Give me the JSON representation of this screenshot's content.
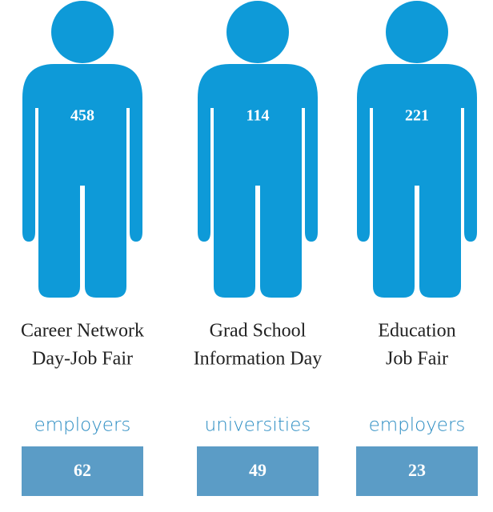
{
  "items": [
    {
      "value": "458",
      "label": [
        "Career Network",
        "Day-Job Fair"
      ],
      "unit": "employers",
      "count": "62"
    },
    {
      "value": "114",
      "label": [
        "Grad School",
        "Information Day"
      ],
      "unit": "universities",
      "count": "49"
    },
    {
      "value": "221",
      "label": [
        "Education",
        "Job Fair"
      ],
      "unit": "employers",
      "count": "23"
    }
  ]
}
